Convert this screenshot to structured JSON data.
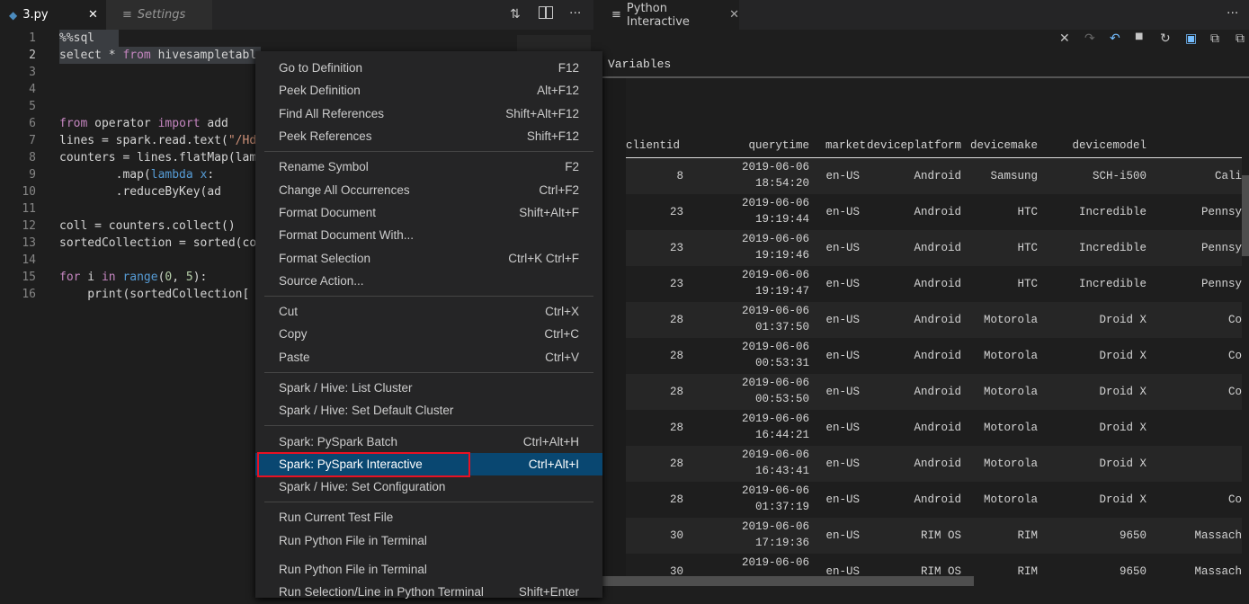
{
  "editor": {
    "tabs": [
      {
        "label": "3.py",
        "icon": "python-icon",
        "active": true
      },
      {
        "label": "Settings",
        "icon": "settings-list-icon",
        "active": false
      }
    ],
    "actions": [
      "compare-changes-icon",
      "split-editor-icon",
      "more-actions-icon"
    ],
    "lines": [
      {
        "n": "1",
        "t": "%%sql"
      },
      {
        "n": "2",
        "t": "select * from hivesampletabl"
      },
      {
        "n": "3",
        "t": ""
      },
      {
        "n": "4",
        "t": ""
      },
      {
        "n": "5",
        "t": ""
      },
      {
        "n": "6",
        "t": "from operator import add"
      },
      {
        "n": "7",
        "t": "lines = spark.read.text(\"/Hd"
      },
      {
        "n": "8",
        "t": "counters = lines.flatMap(lam"
      },
      {
        "n": "9",
        "t": "        .map(lambda x:"
      },
      {
        "n": "10",
        "t": "        .reduceByKey(ad"
      },
      {
        "n": "11",
        "t": ""
      },
      {
        "n": "12",
        "t": "coll = counters.collect()"
      },
      {
        "n": "13",
        "t": "sortedCollection = sorted(co"
      },
      {
        "n": "14",
        "t": ""
      },
      {
        "n": "15",
        "t": "for i in range(0, 5):"
      },
      {
        "n": "16",
        "t": "    print(sortedCollection["
      }
    ]
  },
  "context_menu": {
    "groups": [
      [
        {
          "label": "Go to Definition",
          "key": "F12"
        },
        {
          "label": "Peek Definition",
          "key": "Alt+F12"
        },
        {
          "label": "Find All References",
          "key": "Shift+Alt+F12"
        },
        {
          "label": "Peek References",
          "key": "Shift+F12"
        }
      ],
      [
        {
          "label": "Rename Symbol",
          "key": "F2"
        },
        {
          "label": "Change All Occurrences",
          "key": "Ctrl+F2"
        },
        {
          "label": "Format Document",
          "key": "Shift+Alt+F"
        },
        {
          "label": "Format Document With...",
          "key": ""
        },
        {
          "label": "Format Selection",
          "key": "Ctrl+K Ctrl+F"
        },
        {
          "label": "Source Action...",
          "key": ""
        }
      ],
      [
        {
          "label": "Cut",
          "key": "Ctrl+X"
        },
        {
          "label": "Copy",
          "key": "Ctrl+C"
        },
        {
          "label": "Paste",
          "key": "Ctrl+V"
        }
      ],
      [
        {
          "label": "Spark / Hive: List Cluster",
          "key": ""
        },
        {
          "label": "Spark / Hive: Set Default Cluster",
          "key": ""
        }
      ],
      [
        {
          "label": "Spark: PySpark Batch",
          "key": "Ctrl+Alt+H"
        },
        {
          "label": "Spark: PySpark Interactive",
          "key": "Ctrl+Alt+I",
          "highlighted": true
        },
        {
          "label": "Spark / Hive: Set Configuration",
          "key": ""
        }
      ],
      [
        {
          "label": "Run Current Test File",
          "key": ""
        },
        {
          "label": "Run Python File in Terminal",
          "key": ""
        }
      ],
      [
        {
          "label": "Run Python File in Terminal",
          "key": ""
        },
        {
          "label": "Run Selection/Line in Python Terminal",
          "key": "Shift+Enter"
        }
      ]
    ],
    "highlight_color": "#094771",
    "annotation_box_color": "#e81123"
  },
  "interactive": {
    "tab_label": "Python Interactive",
    "toolbar": [
      "clear-all-icon",
      "redo-icon",
      "undo-icon",
      "interrupt-icon",
      "restart-icon",
      "export-icon",
      "expand-all-icon",
      "collapse-all-icon"
    ],
    "variables_label": "Variables",
    "columns": [
      "clientid",
      "querytime",
      "market",
      "deviceplatform",
      "devicemake",
      "devicemodel",
      ""
    ],
    "rows": [
      [
        "8",
        "2019-06-06",
        "18:54:20",
        "en-US",
        "Android",
        "Samsung",
        "SCH-i500",
        "Cali"
      ],
      [
        "23",
        "2019-06-06",
        "19:19:44",
        "en-US",
        "Android",
        "HTC",
        "Incredible",
        "Pennsy"
      ],
      [
        "23",
        "2019-06-06",
        "19:19:46",
        "en-US",
        "Android",
        "HTC",
        "Incredible",
        "Pennsy"
      ],
      [
        "23",
        "2019-06-06",
        "19:19:47",
        "en-US",
        "Android",
        "HTC",
        "Incredible",
        "Pennsy"
      ],
      [
        "28",
        "2019-06-06",
        "01:37:50",
        "en-US",
        "Android",
        "Motorola",
        "Droid X",
        "Co"
      ],
      [
        "28",
        "2019-06-06",
        "00:53:31",
        "en-US",
        "Android",
        "Motorola",
        "Droid X",
        "Co"
      ],
      [
        "28",
        "2019-06-06",
        "00:53:50",
        "en-US",
        "Android",
        "Motorola",
        "Droid X",
        "Co"
      ],
      [
        "28",
        "2019-06-06",
        "16:44:21",
        "en-US",
        "Android",
        "Motorola",
        "Droid X",
        ""
      ],
      [
        "28",
        "2019-06-06",
        "16:43:41",
        "en-US",
        "Android",
        "Motorola",
        "Droid X",
        ""
      ],
      [
        "28",
        "2019-06-06",
        "01:37:19",
        "en-US",
        "Android",
        "Motorola",
        "Droid X",
        "Co"
      ],
      [
        "30",
        "2019-06-06",
        "17:19:36",
        "en-US",
        "RIM OS",
        "RIM",
        "9650",
        "Massach"
      ],
      [
        "30",
        "2019-06-06",
        "",
        "en-US",
        "RIM OS",
        "RIM",
        "9650",
        "Massach"
      ]
    ]
  }
}
